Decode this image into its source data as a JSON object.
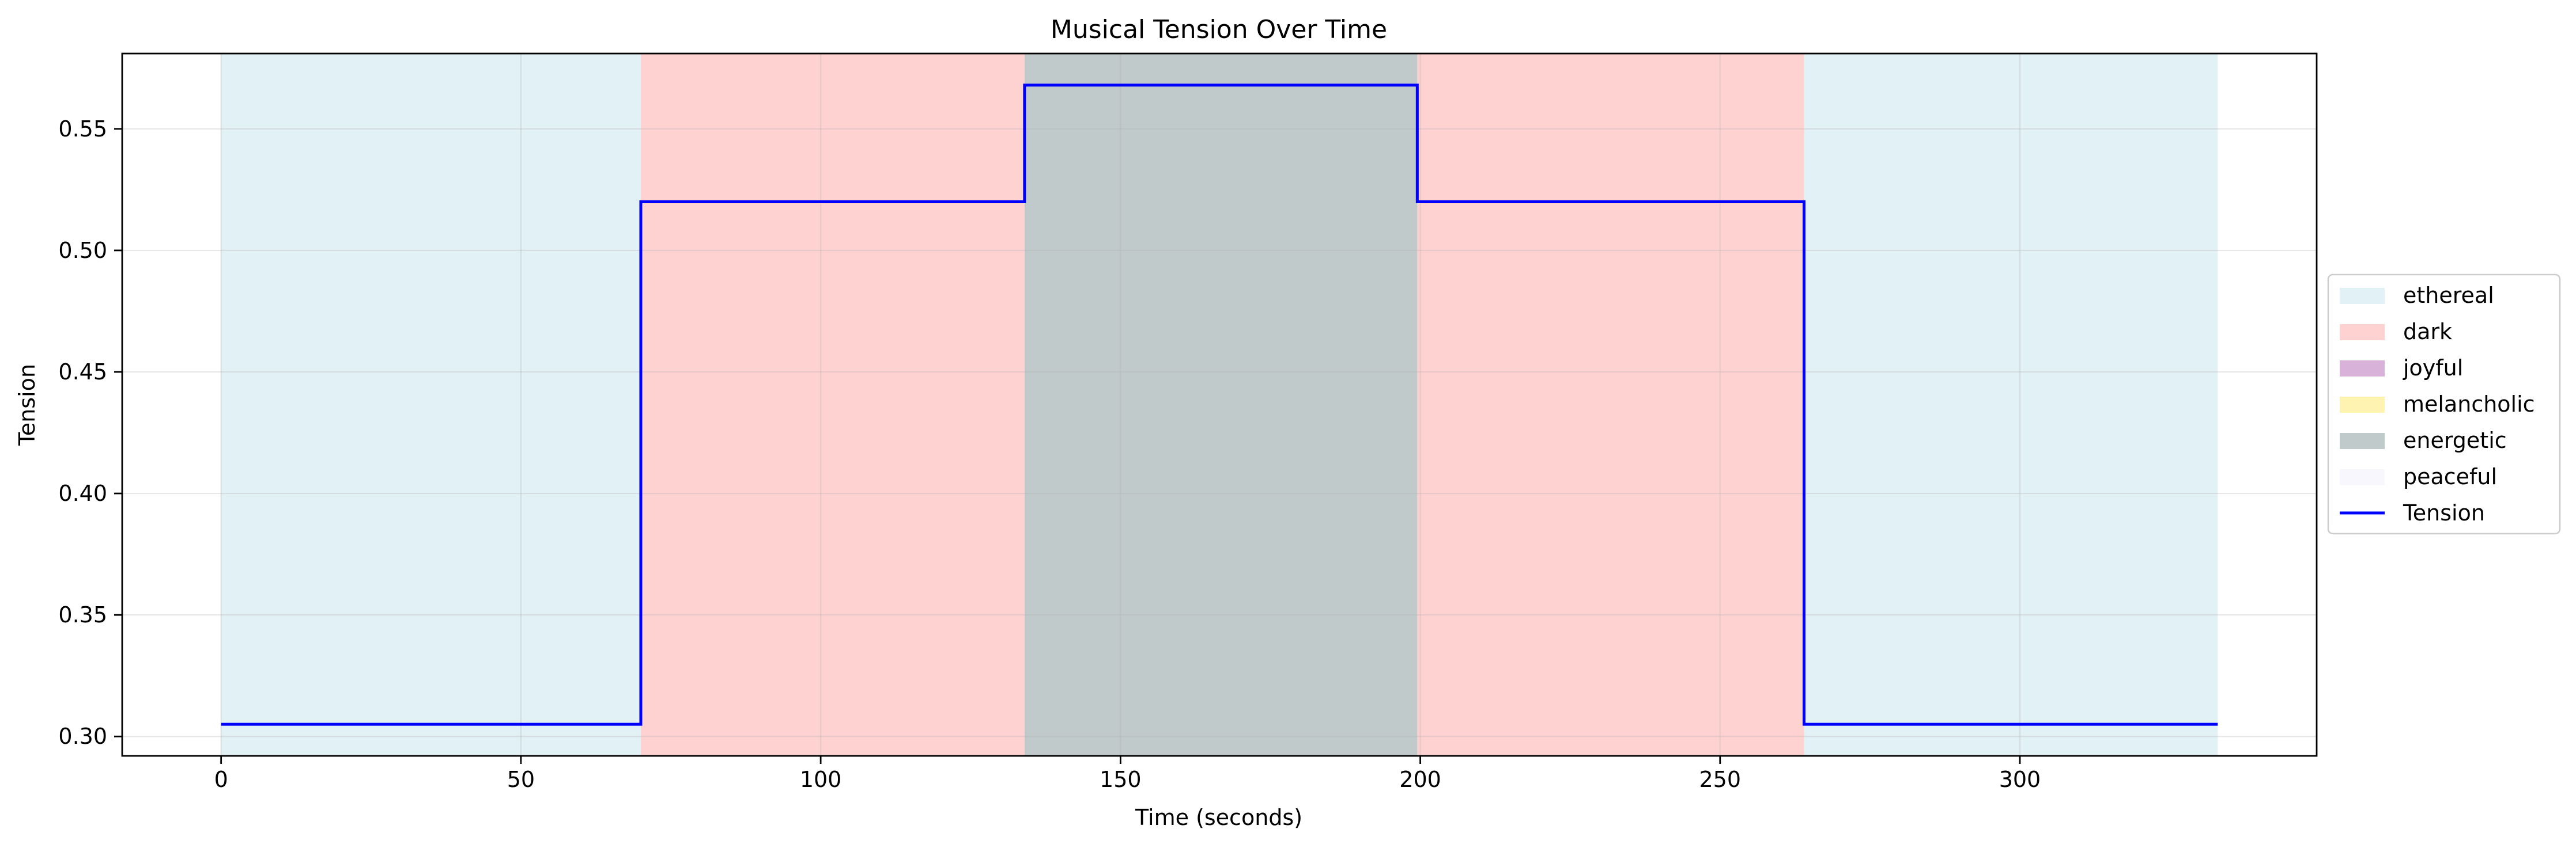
{
  "chart_data": {
    "type": "line",
    "title": "Musical Tension Over Time",
    "xlabel": "Time (seconds)",
    "ylabel": "Tension",
    "xlim": [
      -16.5,
      349.5
    ],
    "ylim": [
      0.292,
      0.581
    ],
    "xticks": [
      0,
      50,
      100,
      150,
      200,
      250,
      300
    ],
    "xtick_labels": [
      "0",
      "50",
      "100",
      "150",
      "200",
      "250",
      "300"
    ],
    "yticks": [
      0.3,
      0.35,
      0.4,
      0.45,
      0.5,
      0.55
    ],
    "ytick_labels": [
      "0.30",
      "0.35",
      "0.40",
      "0.45",
      "0.50",
      "0.55"
    ],
    "grid": true,
    "legend_position": "center right (outside plot)",
    "mood_regions": [
      {
        "mood": "ethereal",
        "start": 0,
        "end": 70
      },
      {
        "mood": "dark",
        "start": 70,
        "end": 134
      },
      {
        "mood": "energetic",
        "start": 134,
        "end": 199.5
      },
      {
        "mood": "dark",
        "start": 199.5,
        "end": 264
      },
      {
        "mood": "ethereal",
        "start": 264,
        "end": 333
      }
    ],
    "series": [
      {
        "name": "Tension",
        "color": "#0000ff",
        "step": "post",
        "x": [
          0,
          70,
          134,
          199.5,
          264,
          333
        ],
        "y": [
          0.305,
          0.52,
          0.568,
          0.52,
          0.305,
          0.305
        ]
      }
    ],
    "legend": [
      {
        "label": "ethereal",
        "type": "patch",
        "color": "#add8e6",
        "alpha": 0.35
      },
      {
        "label": "dark",
        "type": "patch",
        "color": "#ff6b6b",
        "alpha": 0.3
      },
      {
        "label": "joyful",
        "type": "patch",
        "color": "#800080",
        "alpha": 0.3
      },
      {
        "label": "melancholic",
        "type": "patch",
        "color": "#ffd700",
        "alpha": 0.3
      },
      {
        "label": "energetic",
        "type": "patch",
        "color": "#2f4f4f",
        "alpha": 0.3
      },
      {
        "label": "peaceful",
        "type": "patch",
        "color": "#e6e6fa",
        "alpha": 0.3
      },
      {
        "label": "Tension",
        "type": "line",
        "color": "#0000ff"
      }
    ],
    "mood_colors": {
      "ethereal": {
        "color": "#add8e6",
        "alpha": 0.35
      },
      "dark": {
        "color": "#ff6b6b",
        "alpha": 0.3
      },
      "joyful": {
        "color": "#800080",
        "alpha": 0.3
      },
      "melancholic": {
        "color": "#ffd700",
        "alpha": 0.3
      },
      "energetic": {
        "color": "#2f4f4f",
        "alpha": 0.3
      },
      "peaceful": {
        "color": "#e6e6fa",
        "alpha": 0.3
      }
    }
  }
}
